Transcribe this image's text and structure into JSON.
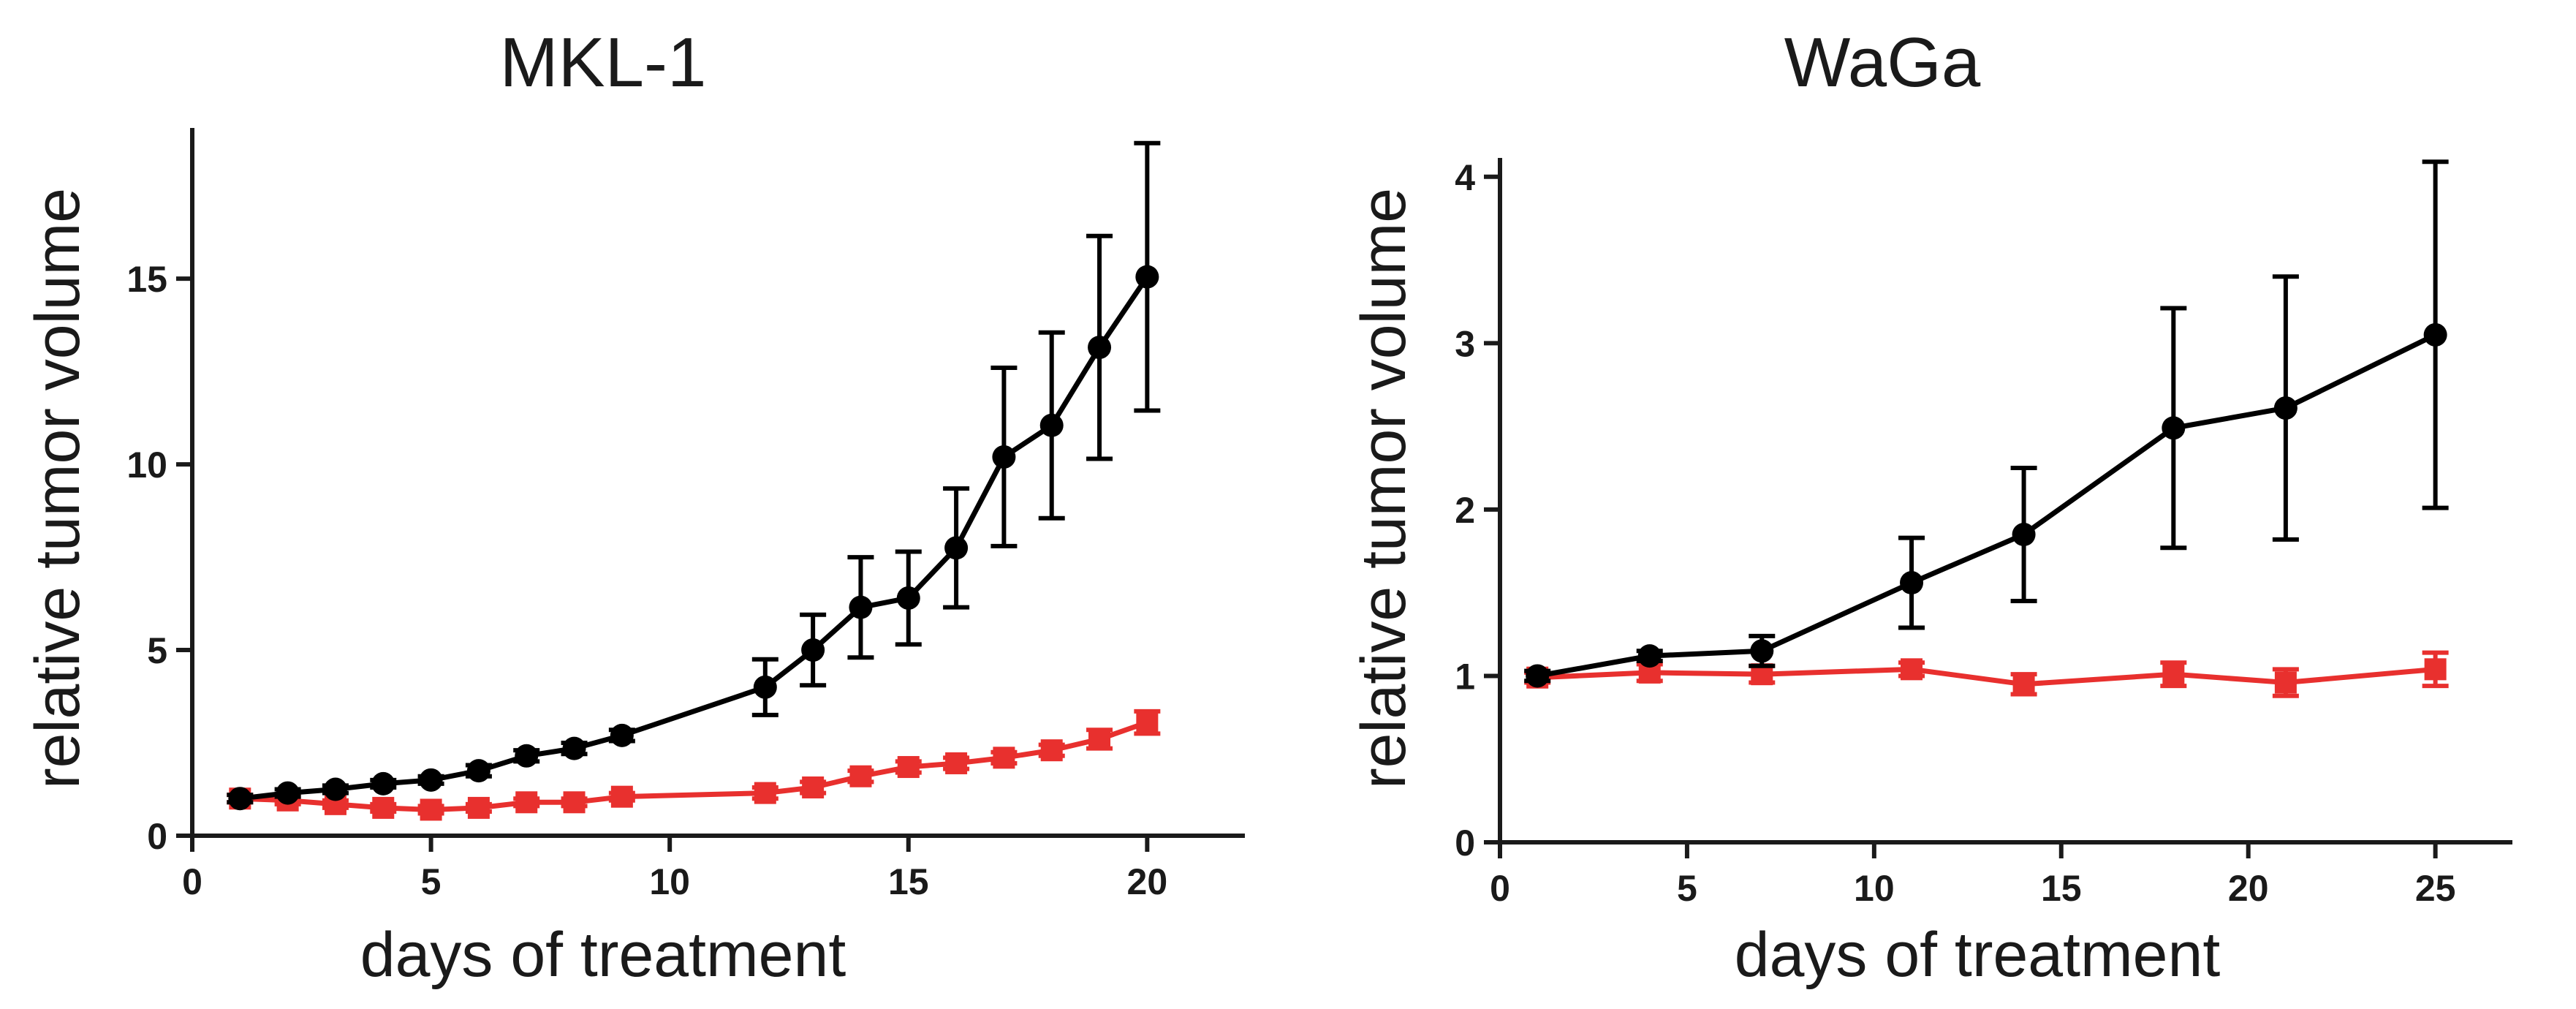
{
  "chart_data": [
    {
      "type": "line",
      "title": "MKL-1",
      "xlabel": "days of treatment",
      "ylabel": "relative tumor volume",
      "xlim": [
        0,
        22
      ],
      "ylim": [
        0,
        19
      ],
      "xticks": [
        0,
        5,
        10,
        15,
        20
      ],
      "yticks": [
        0,
        5,
        10,
        15
      ],
      "series": [
        {
          "name": "black",
          "color": "#000000",
          "marker": "circle",
          "x": [
            1,
            2,
            3,
            4,
            5,
            6,
            7,
            8,
            9,
            12,
            13,
            14,
            15,
            16,
            17,
            18,
            19,
            20
          ],
          "y": [
            1.0,
            1.15,
            1.25,
            1.4,
            1.5,
            1.75,
            2.15,
            2.35,
            2.7,
            4.0,
            5.0,
            6.15,
            6.4,
            7.75,
            10.2,
            11.05,
            13.15,
            15.05
          ],
          "err": [
            0.1,
            0.1,
            0.1,
            0.1,
            0.1,
            0.15,
            0.15,
            0.15,
            0.15,
            0.75,
            0.95,
            1.35,
            1.25,
            1.6,
            2.4,
            2.5,
            3.0,
            3.6
          ]
        },
        {
          "name": "red",
          "color": "#e8302e",
          "marker": "square",
          "x": [
            1,
            2,
            3,
            4,
            5,
            6,
            7,
            8,
            9,
            12,
            13,
            14,
            15,
            16,
            17,
            18,
            19,
            20
          ],
          "y": [
            1.0,
            0.95,
            0.85,
            0.75,
            0.7,
            0.75,
            0.9,
            0.9,
            1.05,
            1.15,
            1.3,
            1.6,
            1.85,
            1.95,
            2.1,
            2.3,
            2.6,
            3.05
          ],
          "err": [
            0.1,
            0.1,
            0.1,
            0.1,
            0.1,
            0.1,
            0.1,
            0.1,
            0.1,
            0.15,
            0.15,
            0.15,
            0.15,
            0.15,
            0.15,
            0.15,
            0.25,
            0.3
          ]
        }
      ]
    },
    {
      "type": "line",
      "title": "WaGa",
      "xlabel": "days of treatment",
      "ylabel": "relative tumor volume",
      "xlim": [
        0,
        27
      ],
      "ylim": [
        0,
        4.1
      ],
      "xticks": [
        0,
        5,
        10,
        15,
        20,
        25
      ],
      "yticks": [
        0,
        1,
        2,
        3,
        4
      ],
      "series": [
        {
          "name": "black",
          "color": "#000000",
          "marker": "circle",
          "x": [
            1,
            4,
            7,
            11,
            14,
            18,
            21,
            25
          ],
          "y": [
            1.0,
            1.12,
            1.15,
            1.56,
            1.85,
            2.49,
            2.61,
            3.05
          ],
          "err": [
            0.03,
            0.03,
            0.09,
            0.27,
            0.4,
            0.72,
            0.79,
            1.04
          ]
        },
        {
          "name": "red",
          "color": "#e8302e",
          "marker": "square",
          "x": [
            1,
            4,
            7,
            11,
            14,
            18,
            21,
            25
          ],
          "y": [
            0.99,
            1.02,
            1.01,
            1.04,
            0.95,
            1.01,
            0.96,
            1.04
          ],
          "err": [
            0.03,
            0.05,
            0.05,
            0.04,
            0.06,
            0.07,
            0.08,
            0.1
          ]
        }
      ]
    }
  ]
}
